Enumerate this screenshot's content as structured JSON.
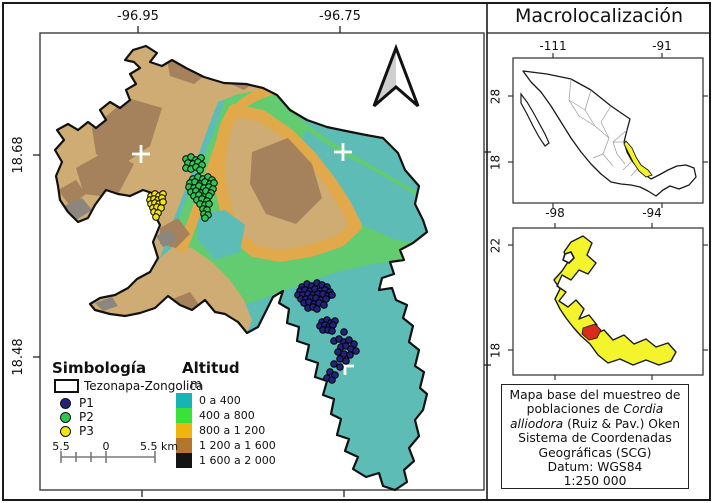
{
  "main_map": {
    "axis": {
      "top": [
        "-96.95",
        "-96.75"
      ],
      "left": [
        "18.68",
        "18.48"
      ]
    },
    "legend": {
      "symbology_title": "Simbología",
      "boundary_label": "Tezonapa-Zongolica",
      "populations": [
        {
          "label": "P1",
          "color": "#22227a"
        },
        {
          "label": "P2",
          "color": "#2fc556"
        },
        {
          "label": "P3",
          "color": "#f0e411"
        }
      ],
      "altitude_title": "Altitud",
      "altitude_unit": "m",
      "altitude_classes": [
        {
          "label": "0 a 400",
          "color": "#17b4b4"
        },
        {
          "label": "400 a 800",
          "color": "#39e13a"
        },
        {
          "label": "800 a 1 200",
          "color": "#f0b40f"
        },
        {
          "label": "1 200 a 1 600",
          "color": "#b4762f"
        },
        {
          "label": "1 600 a 2 000",
          "color": "#141414"
        }
      ]
    },
    "scalebar": {
      "left": "5.5",
      "mid": "0",
      "right": "5.5 km"
    },
    "terrain_colors": {
      "teal": "#5dbcb6",
      "green": "#63cb70",
      "tan": "#cfac73",
      "brown": "#a5815c",
      "orange": "#e2a94a",
      "gray": "#8b867e"
    },
    "samples": {
      "P1": [
        [
          302,
          287
        ],
        [
          307,
          284
        ],
        [
          312,
          286
        ],
        [
          317,
          283
        ],
        [
          322,
          285
        ],
        [
          327,
          287
        ],
        [
          300,
          291
        ],
        [
          305,
          290
        ],
        [
          310,
          291
        ],
        [
          315,
          289
        ],
        [
          320,
          291
        ],
        [
          325,
          290
        ],
        [
          330,
          292
        ],
        [
          298,
          295
        ],
        [
          303,
          295
        ],
        [
          308,
          294
        ],
        [
          313,
          295
        ],
        [
          318,
          294
        ],
        [
          323,
          294
        ],
        [
          328,
          296
        ],
        [
          332,
          295
        ],
        [
          301,
          299
        ],
        [
          306,
          299
        ],
        [
          311,
          298
        ],
        [
          316,
          298
        ],
        [
          321,
          300
        ],
        [
          326,
          299
        ],
        [
          304,
          303
        ],
        [
          309,
          302
        ],
        [
          314,
          304
        ],
        [
          319,
          303
        ],
        [
          324,
          305
        ],
        [
          308,
          308
        ],
        [
          313,
          307
        ],
        [
          317,
          309
        ],
        [
          322,
          322
        ],
        [
          327,
          320
        ],
        [
          331,
          323
        ],
        [
          335,
          321
        ],
        [
          320,
          326
        ],
        [
          325,
          325
        ],
        [
          329,
          327
        ],
        [
          333,
          325
        ],
        [
          323,
          330
        ],
        [
          328,
          330
        ],
        [
          332,
          331
        ],
        [
          344,
          332
        ],
        [
          334,
          341
        ],
        [
          339,
          339
        ],
        [
          344,
          342
        ],
        [
          349,
          340
        ],
        [
          354,
          344
        ],
        [
          341,
          347
        ],
        [
          346,
          346
        ],
        [
          351,
          349
        ],
        [
          338,
          352
        ],
        [
          344,
          354
        ],
        [
          350,
          355
        ],
        [
          356,
          351
        ],
        [
          340,
          359
        ],
        [
          346,
          361
        ],
        [
          334,
          364
        ],
        [
          340,
          367
        ],
        [
          330,
          372
        ],
        [
          335,
          375
        ],
        [
          327,
          378
        ],
        [
          332,
          380
        ]
      ],
      "P2": [
        [
          186,
          159
        ],
        [
          191,
          157
        ],
        [
          196,
          160
        ],
        [
          201,
          158
        ],
        [
          188,
          163
        ],
        [
          193,
          164
        ],
        [
          198,
          162
        ],
        [
          202,
          165
        ],
        [
          186,
          168
        ],
        [
          191,
          169
        ],
        [
          196,
          167
        ],
        [
          200,
          170
        ],
        [
          193,
          179
        ],
        [
          198,
          177
        ],
        [
          203,
          179
        ],
        [
          208,
          177
        ],
        [
          212,
          180
        ],
        [
          190,
          183
        ],
        [
          195,
          182
        ],
        [
          200,
          184
        ],
        [
          205,
          182
        ],
        [
          210,
          184
        ],
        [
          214,
          183
        ],
        [
          189,
          187
        ],
        [
          194,
          188
        ],
        [
          199,
          186
        ],
        [
          204,
          188
        ],
        [
          209,
          187
        ],
        [
          213,
          189
        ],
        [
          191,
          192
        ],
        [
          196,
          191
        ],
        [
          201,
          193
        ],
        [
          206,
          191
        ],
        [
          211,
          193
        ],
        [
          194,
          196
        ],
        [
          199,
          195
        ],
        [
          204,
          197
        ],
        [
          209,
          196
        ],
        [
          197,
          200
        ],
        [
          202,
          199
        ],
        [
          207,
          201
        ],
        [
          200,
          204
        ],
        [
          205,
          205
        ],
        [
          209,
          204
        ],
        [
          203,
          209
        ],
        [
          207,
          210
        ],
        [
          204,
          214
        ],
        [
          208,
          215
        ],
        [
          205,
          218
        ]
      ],
      "P3": [
        [
          151,
          196
        ],
        [
          155,
          194
        ],
        [
          159,
          196
        ],
        [
          163,
          194
        ],
        [
          150,
          200
        ],
        [
          154,
          199
        ],
        [
          158,
          200
        ],
        [
          162,
          198
        ],
        [
          151,
          204
        ],
        [
          155,
          203
        ],
        [
          159,
          204
        ],
        [
          163,
          202
        ],
        [
          153,
          208
        ],
        [
          157,
          207
        ],
        [
          161,
          208
        ],
        [
          154,
          212
        ],
        [
          158,
          213
        ],
        [
          156,
          217
        ]
      ]
    }
  },
  "macro_panel": {
    "title": "Macrolocalización",
    "mexico_inset": {
      "axis_top": [
        "-111",
        "-91"
      ],
      "axis_left": [
        "28",
        "18"
      ],
      "highlight_color": "#f4f42d"
    },
    "veracruz_inset": {
      "axis_top": [
        "-98",
        "-94"
      ],
      "axis_left": [
        "22",
        "18"
      ],
      "highlight_color": "#f4f42d",
      "study_area_color": "#d92b1c"
    },
    "caption": {
      "l1": "Mapa base del muestreo de",
      "l2a": "poblaciones de ",
      "l2b": "Cordia",
      "l3a": "alliodora",
      "l3b": " (Ruiz & Pav.) Oken",
      "l4": "Sistema de Coordenadas",
      "l5": "Geográficas (SCG)",
      "l6": "Datum: WGS84",
      "l7": "1:250 000"
    }
  }
}
